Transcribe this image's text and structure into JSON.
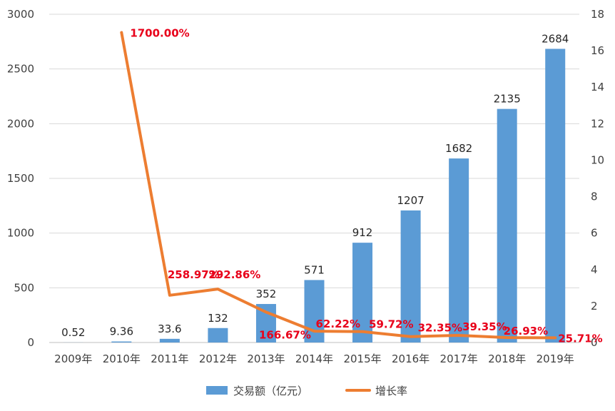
{
  "chart_data": {
    "type": "bar",
    "categories": [
      "2009年",
      "2010年",
      "2011年",
      "2012年",
      "2013年",
      "2014年",
      "2015年",
      "2016年",
      "2017年",
      "2018年",
      "2019年"
    ],
    "series": [
      {
        "name": "交易额（亿元）",
        "type": "bar",
        "axis": "left",
        "color": "#5b9bd5",
        "values": [
          0.52,
          9.36,
          33.6,
          132,
          352,
          571,
          912,
          1207,
          1682,
          2135,
          2684
        ],
        "labels": [
          "0.52",
          "9.36",
          "33.6",
          "132",
          "352",
          "571",
          "912",
          "1207",
          "1682",
          "2135",
          "2684"
        ]
      },
      {
        "name": "增长率",
        "type": "line",
        "axis": "right",
        "color": "#ed7d31",
        "values": [
          null,
          17.0,
          2.5897,
          2.9286,
          1.6667,
          0.6222,
          0.5972,
          0.3235,
          0.3935,
          0.2693,
          0.2571
        ],
        "labels": [
          "",
          "1700.00%",
          "258.97%",
          "292.86%",
          "166.67%",
          "62.22%",
          "59.72%",
          "32.35%",
          "39.35%",
          "26.93%",
          "25.71%"
        ]
      }
    ],
    "y_left": {
      "min": 0,
      "max": 3000,
      "ticks": [
        0,
        500,
        1000,
        1500,
        2000,
        2500,
        3000
      ]
    },
    "y_right": {
      "min": 0,
      "max": 18,
      "ticks": [
        0,
        2,
        4,
        6,
        8,
        10,
        12,
        14,
        16,
        18
      ]
    },
    "grid": true,
    "legend_position": "bottom",
    "label_color": "#e8001a"
  }
}
